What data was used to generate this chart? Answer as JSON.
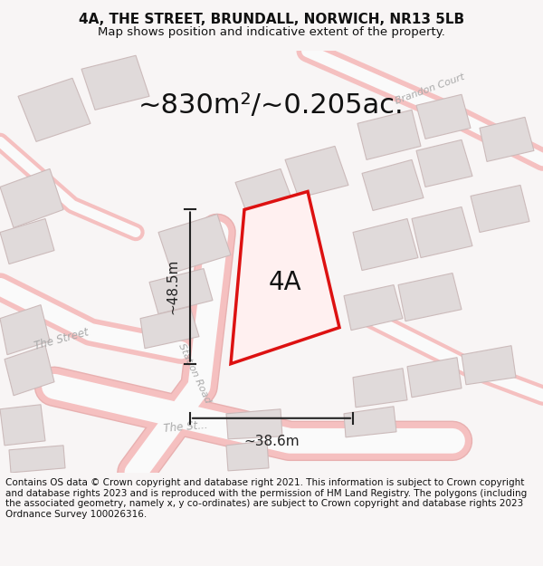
{
  "title": "4A, THE STREET, BRUNDALL, NORWICH, NR13 5LB",
  "subtitle": "Map shows position and indicative extent of the property.",
  "area_text": "~830m²/~0.205ac.",
  "label_4A": "4A",
  "dim_height": "~48.5m",
  "dim_width": "~38.6m",
  "footer": "Contains OS data © Crown copyright and database right 2021. This information is subject to Crown copyright and database rights 2023 and is reproduced with the permission of HM Land Registry. The polygons (including the associated geometry, namely x, y co-ordinates) are subject to Crown copyright and database rights 2023 Ordnance Survey 100026316.",
  "bg_color": "#f7f4f4",
  "map_bg": "#ffffff",
  "title_fontsize": 11,
  "subtitle_fontsize": 9.5,
  "area_fontsize": 22,
  "label_fontsize": 20,
  "dim_fontsize": 11,
  "footer_fontsize": 7.5,
  "road_color_light": "#f5c0c0",
  "road_color_dark": "#e88080",
  "building_fill": "#e0dada",
  "building_stroke": "#ccbbbb",
  "plot_color": "#dd1111",
  "dim_color": "#222222",
  "text_color": "#111111",
  "road_label_color": "#aaaaaa"
}
